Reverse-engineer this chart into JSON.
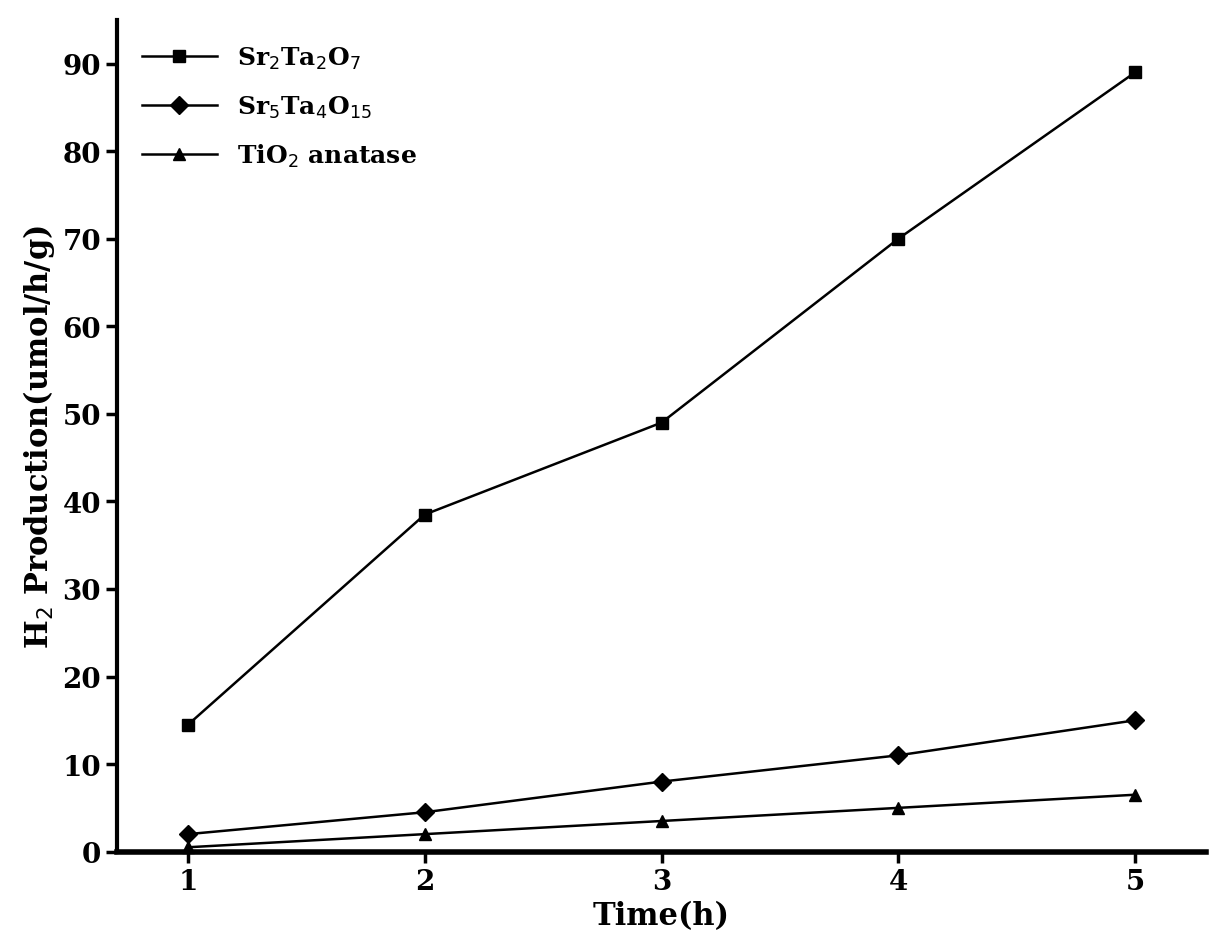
{
  "x": [
    1,
    2,
    3,
    4,
    5
  ],
  "series": [
    {
      "label": "Sr$_2$Ta$_2$O$_7$",
      "y": [
        14.5,
        38.5,
        49,
        70,
        89
      ],
      "color": "#000000",
      "marker": "s",
      "markersize": 9,
      "linewidth": 1.8
    },
    {
      "label": "Sr$_5$Ta$_4$O$_{15}$",
      "y": [
        2,
        4.5,
        8,
        11,
        15
      ],
      "color": "#000000",
      "marker": "D",
      "markersize": 9,
      "linewidth": 1.8
    },
    {
      "label": "TiO$_2$ anatase",
      "y": [
        0.5,
        2,
        3.5,
        5,
        6.5
      ],
      "color": "#000000",
      "marker": "^",
      "markersize": 9,
      "linewidth": 1.8
    }
  ],
  "xlabel": "Time(h)",
  "ylabel": "H$_2$ Production(umol/h/g)",
  "xlim": [
    0.7,
    5.3
  ],
  "ylim": [
    0,
    95
  ],
  "yticks": [
    0,
    10,
    20,
    30,
    40,
    50,
    60,
    70,
    80,
    90
  ],
  "xticks": [
    1,
    2,
    3,
    4,
    5
  ],
  "xlabel_fontsize": 22,
  "ylabel_fontsize": 22,
  "tick_fontsize": 20,
  "legend_fontsize": 18,
  "background_color": "#ffffff",
  "spine_linewidth": 3.0,
  "bottom_spine_linewidth": 4.0
}
